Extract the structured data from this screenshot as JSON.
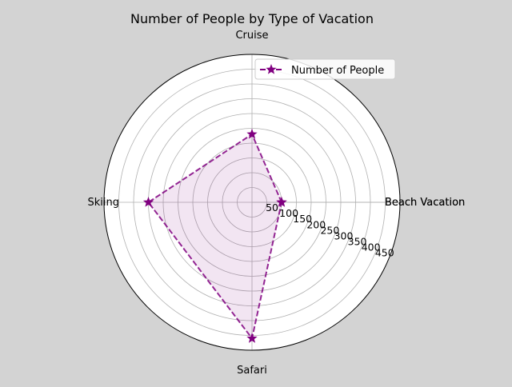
{
  "chart_data": {
    "type": "radar",
    "title": "Number of People by Type of Vacation",
    "categories": [
      "Beach Vacation",
      "Cruise",
      "Skiing",
      "Safari",
      "Beach Vacation"
    ],
    "series": [
      {
        "name": "Number of People",
        "values": [
          100,
          230,
          350,
          460,
          100
        ],
        "color": "#800080",
        "marker": "star",
        "line_style": "dashed",
        "fill": true
      }
    ],
    "r_ticks": [
      50,
      100,
      150,
      200,
      250,
      300,
      350,
      400,
      450
    ],
    "r_max": 500,
    "grid": true,
    "legend": "top-right"
  }
}
